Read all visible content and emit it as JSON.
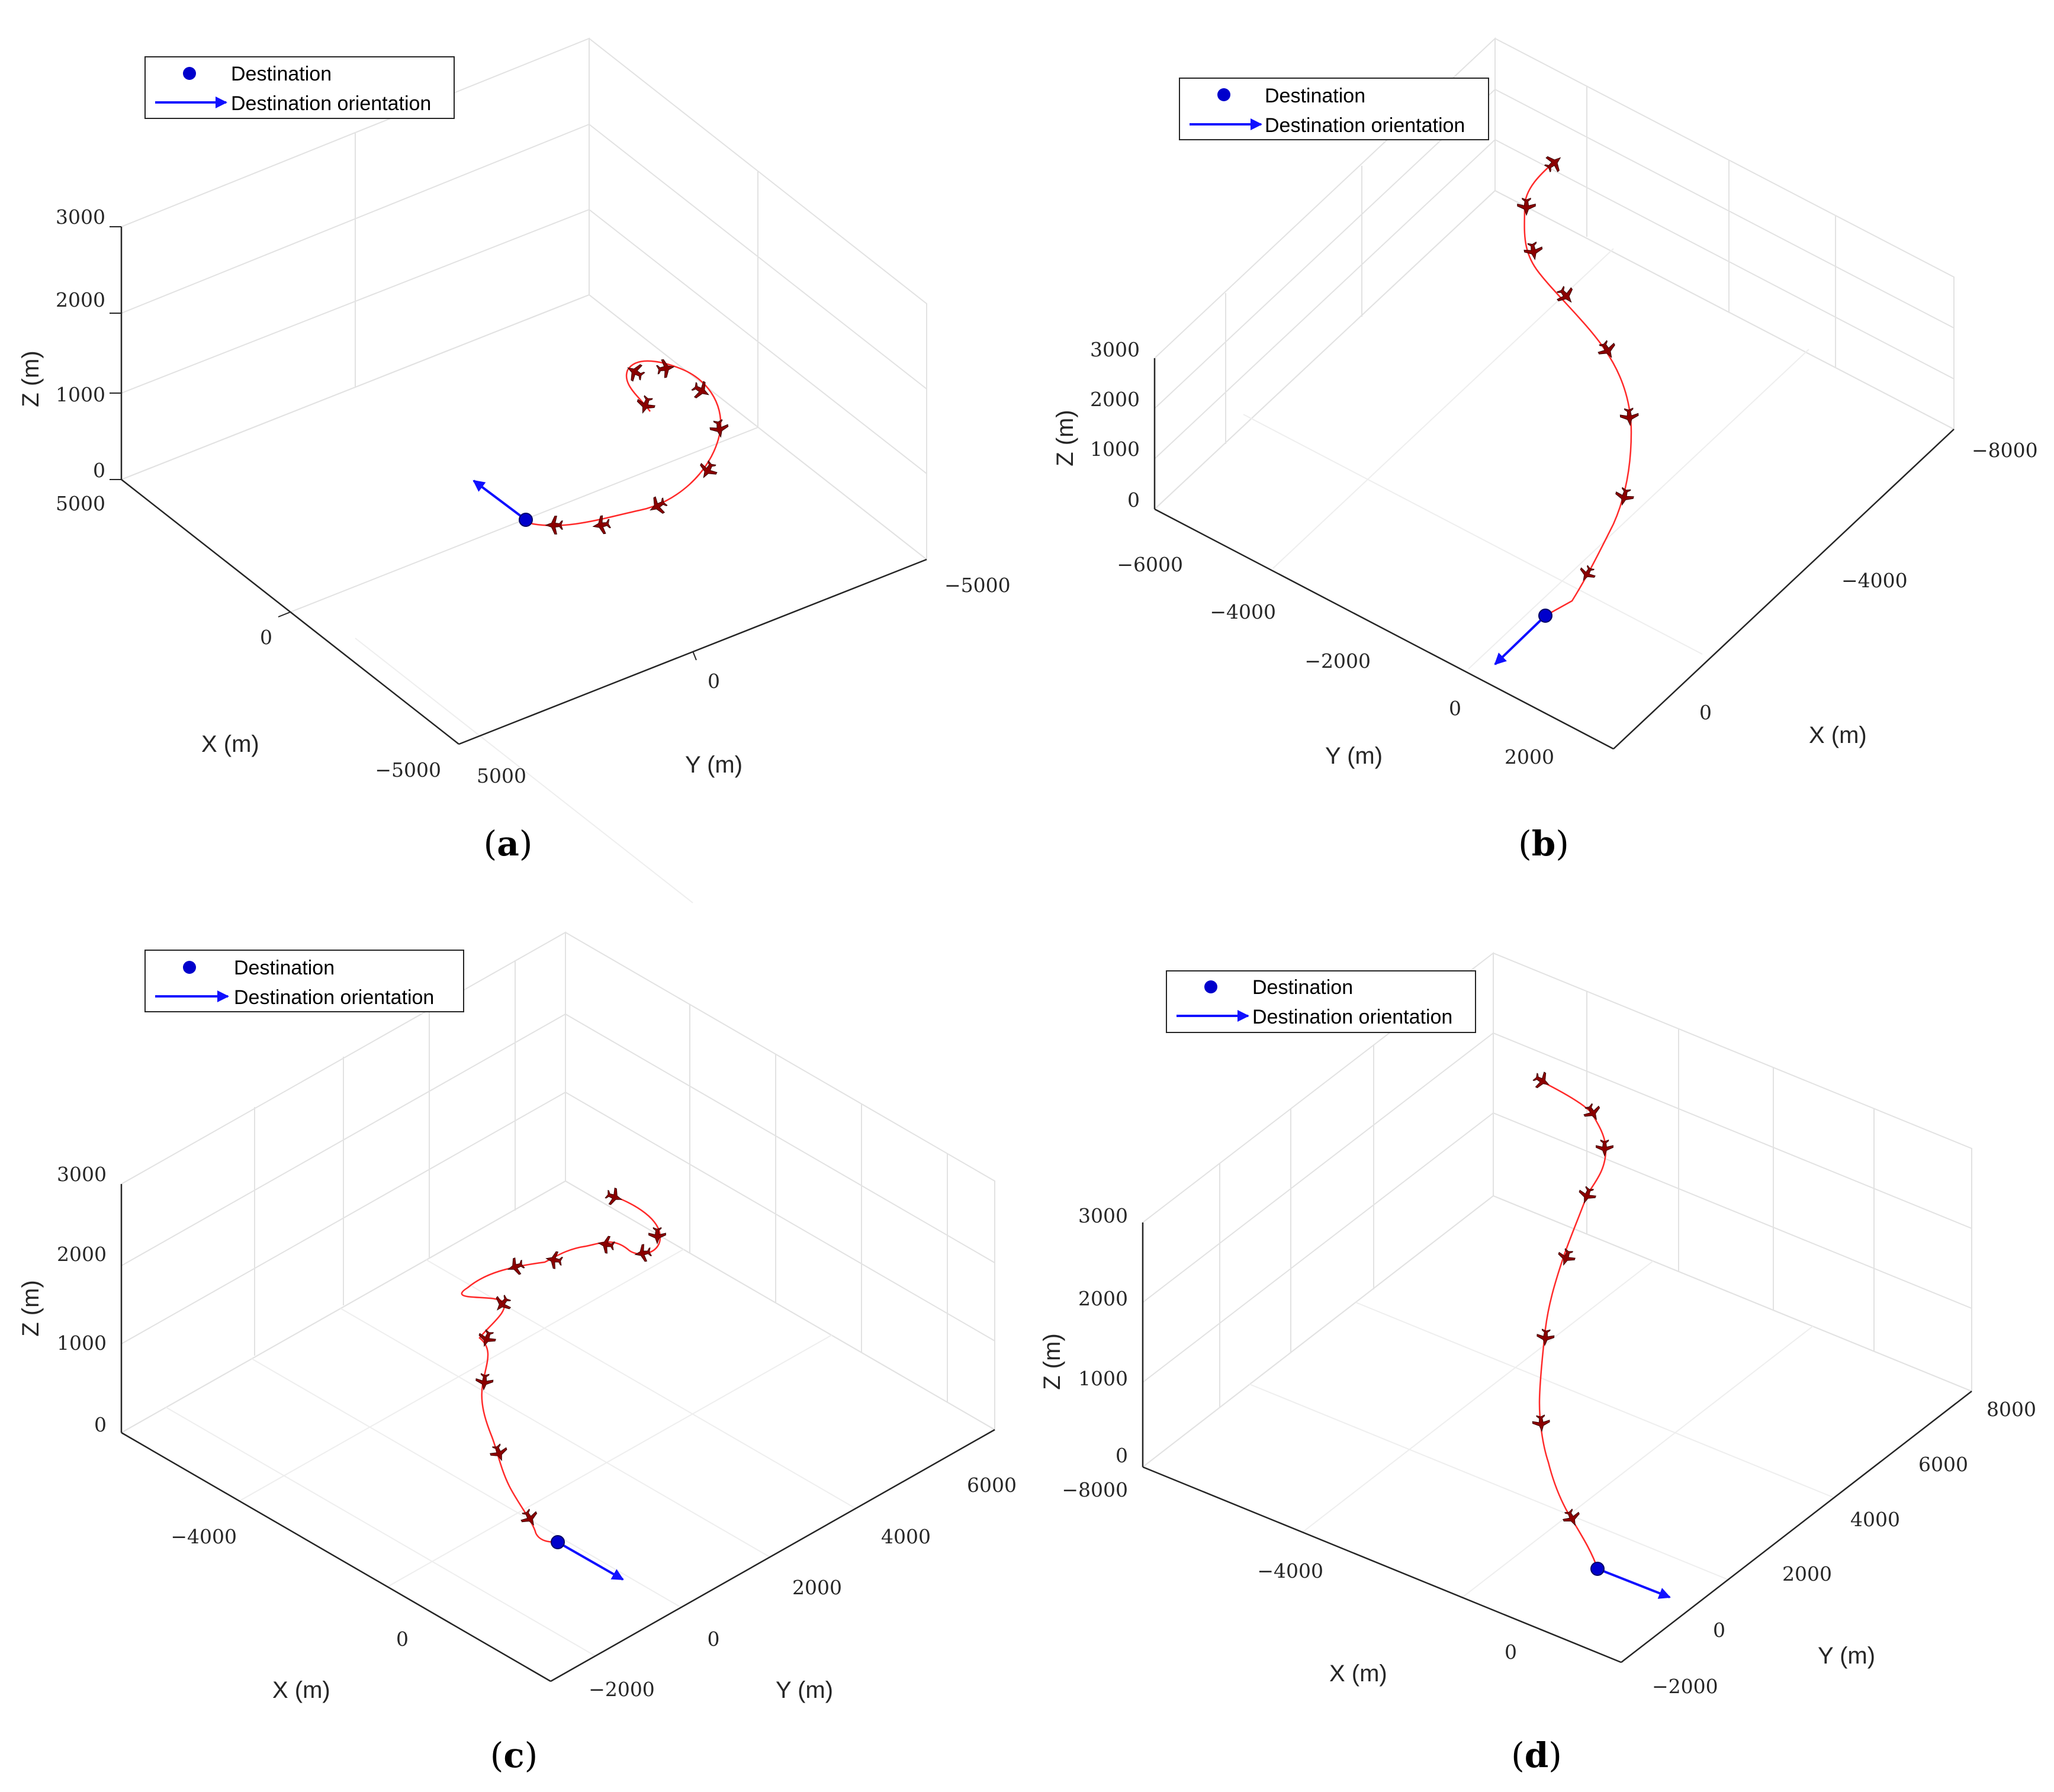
{
  "legend": {
    "destination": "Destination",
    "orientation": "Destination orientation"
  },
  "colors": {
    "destination": "#0000cc",
    "orientation": "#1010ff",
    "path": "#ff2a2a",
    "aircraft": "#8b0000"
  },
  "chart_data": [
    {
      "type": "line",
      "panel": "a",
      "caption_open": "(",
      "caption_letter": "a",
      "caption_close": ")",
      "xlabel": "X (m)",
      "ylabel": "Y (m)",
      "zlabel": "Z (m)",
      "x_ticks": [
        "5000",
        "0",
        "−5000"
      ],
      "y_ticks": [
        "5000",
        "0",
        "−5000"
      ],
      "z_ticks": [
        "0",
        "1000",
        "2000",
        "3000"
      ],
      "series": [
        {
          "name": "UAV trajectory",
          "description": "spiral path descending toward destination"
        },
        {
          "name": "Destination"
        },
        {
          "name": "Destination orientation"
        }
      ]
    },
    {
      "type": "line",
      "panel": "b",
      "caption_open": "(",
      "caption_letter": "b",
      "caption_close": ")",
      "xlabel": "X (m)",
      "ylabel": "Y (m)",
      "zlabel": "Z (m)",
      "x_ticks": [
        "0",
        "−4000",
        "−8000"
      ],
      "y_ticks": [
        "−6000",
        "−4000",
        "−2000",
        "0",
        "2000"
      ],
      "z_ticks": [
        "0",
        "1000",
        "2000",
        "3000"
      ],
      "series": [
        {
          "name": "UAV trajectory"
        },
        {
          "name": "Destination"
        },
        {
          "name": "Destination orientation"
        }
      ]
    },
    {
      "type": "line",
      "panel": "c",
      "caption_open": "(",
      "caption_letter": "c",
      "caption_close": ")",
      "xlabel": "X (m)",
      "ylabel": "Y (m)",
      "zlabel": "Z (m)",
      "x_ticks": [
        "−4000",
        "0"
      ],
      "y_ticks": [
        "−2000",
        "0",
        "2000",
        "4000",
        "6000"
      ],
      "z_ticks": [
        "0",
        "1000",
        "2000",
        "3000"
      ],
      "series": [
        {
          "name": "UAV trajectory"
        },
        {
          "name": "Destination"
        },
        {
          "name": "Destination orientation"
        }
      ]
    },
    {
      "type": "line",
      "panel": "d",
      "caption_open": "(",
      "caption_letter": "d",
      "caption_close": ")",
      "xlabel": "X (m)",
      "ylabel": "Y (m)",
      "zlabel": "Z (m)",
      "x_ticks": [
        "−8000",
        "−4000",
        "0"
      ],
      "y_ticks": [
        "−2000",
        "0",
        "2000",
        "4000",
        "6000",
        "8000"
      ],
      "z_ticks": [
        "0",
        "1000",
        "2000",
        "3000"
      ],
      "series": [
        {
          "name": "UAV trajectory"
        },
        {
          "name": "Destination"
        },
        {
          "name": "Destination orientation"
        }
      ]
    }
  ]
}
